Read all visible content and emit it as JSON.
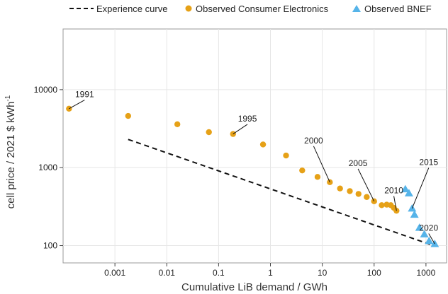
{
  "chart_data": {
    "type": "scatter",
    "xscale": "log",
    "yscale": "log",
    "xlim": [
      0.0001,
      2500
    ],
    "ylim": [
      60,
      60000
    ],
    "xlabel": "Cumulative LiB demand / GWh",
    "ylabel_main": "cell price / 2021 $ kWh",
    "ylabel_sup": "-1",
    "x_ticks": [
      {
        "value": 0.001,
        "label": "0.001"
      },
      {
        "value": 0.01,
        "label": "0.01"
      },
      {
        "value": 0.1,
        "label": "0.1"
      },
      {
        "value": 1,
        "label": "1"
      },
      {
        "value": 10,
        "label": "10"
      },
      {
        "value": 100,
        "label": "100"
      },
      {
        "value": 1000,
        "label": "1000"
      }
    ],
    "y_ticks": [
      {
        "value": 100,
        "label": "100"
      },
      {
        "value": 1000,
        "label": "1000"
      },
      {
        "value": 10000,
        "label": "10000"
      }
    ],
    "grid": true,
    "legend": {
      "position": "top",
      "items": [
        {
          "label": "Experience curve",
          "style": "dashed-line",
          "color": "#111111"
        },
        {
          "label": "Observed Consumer Electronics",
          "style": "circle",
          "color": "#E6A117"
        },
        {
          "label": "Observed BNEF",
          "style": "triangle",
          "color": "#56B4E9"
        }
      ]
    },
    "series": [
      {
        "name": "Experience curve",
        "kind": "line",
        "color": "#111111",
        "points": [
          [
            0.0018,
            2300
          ],
          [
            1400,
            100
          ]
        ]
      },
      {
        "name": "Observed Consumer Electronics",
        "kind": "circle",
        "color": "#E6A117",
        "points": [
          [
            0.00013,
            5700
          ],
          [
            0.0018,
            4600
          ],
          [
            0.016,
            3600
          ],
          [
            0.065,
            2850
          ],
          [
            0.19,
            2700
          ],
          [
            0.72,
            1980
          ],
          [
            2.0,
            1430
          ],
          [
            4.1,
            920
          ],
          [
            8.1,
            760
          ],
          [
            14,
            650
          ],
          [
            22,
            540
          ],
          [
            34,
            500
          ],
          [
            50,
            460
          ],
          [
            72,
            420
          ],
          [
            100,
            370
          ],
          [
            140,
            330
          ],
          [
            175,
            335
          ],
          [
            210,
            330
          ],
          [
            240,
            305
          ],
          [
            270,
            280
          ]
        ]
      },
      {
        "name": "Observed BNEF",
        "kind": "triangle",
        "color": "#56B4E9",
        "points": [
          [
            400,
            530
          ],
          [
            470,
            470
          ],
          [
            540,
            300
          ],
          [
            600,
            250
          ],
          [
            750,
            170
          ],
          [
            930,
            140
          ],
          [
            1150,
            115
          ],
          [
            1480,
            105
          ]
        ]
      }
    ],
    "annotations": [
      {
        "text": "1991",
        "point": [
          0.00013,
          5700
        ],
        "label_at": [
          0.00026,
          8000
        ]
      },
      {
        "text": "1995",
        "point": [
          0.19,
          2700
        ],
        "label_at": [
          0.36,
          3900
        ]
      },
      {
        "text": "2000",
        "point": [
          14,
          650
        ],
        "label_at": [
          6.8,
          2050
        ]
      },
      {
        "text": "2005",
        "point": [
          100,
          370
        ],
        "label_at": [
          49,
          1050
        ]
      },
      {
        "text": "2010",
        "point": [
          270,
          280
        ],
        "label_at": [
          240,
          470
        ]
      },
      {
        "text": "2015",
        "point": [
          540,
          300
        ],
        "label_at": [
          1130,
          1080
        ]
      },
      {
        "text": "2020",
        "point": [
          1480,
          105
        ],
        "label_at": [
          1130,
          155
        ]
      }
    ]
  }
}
